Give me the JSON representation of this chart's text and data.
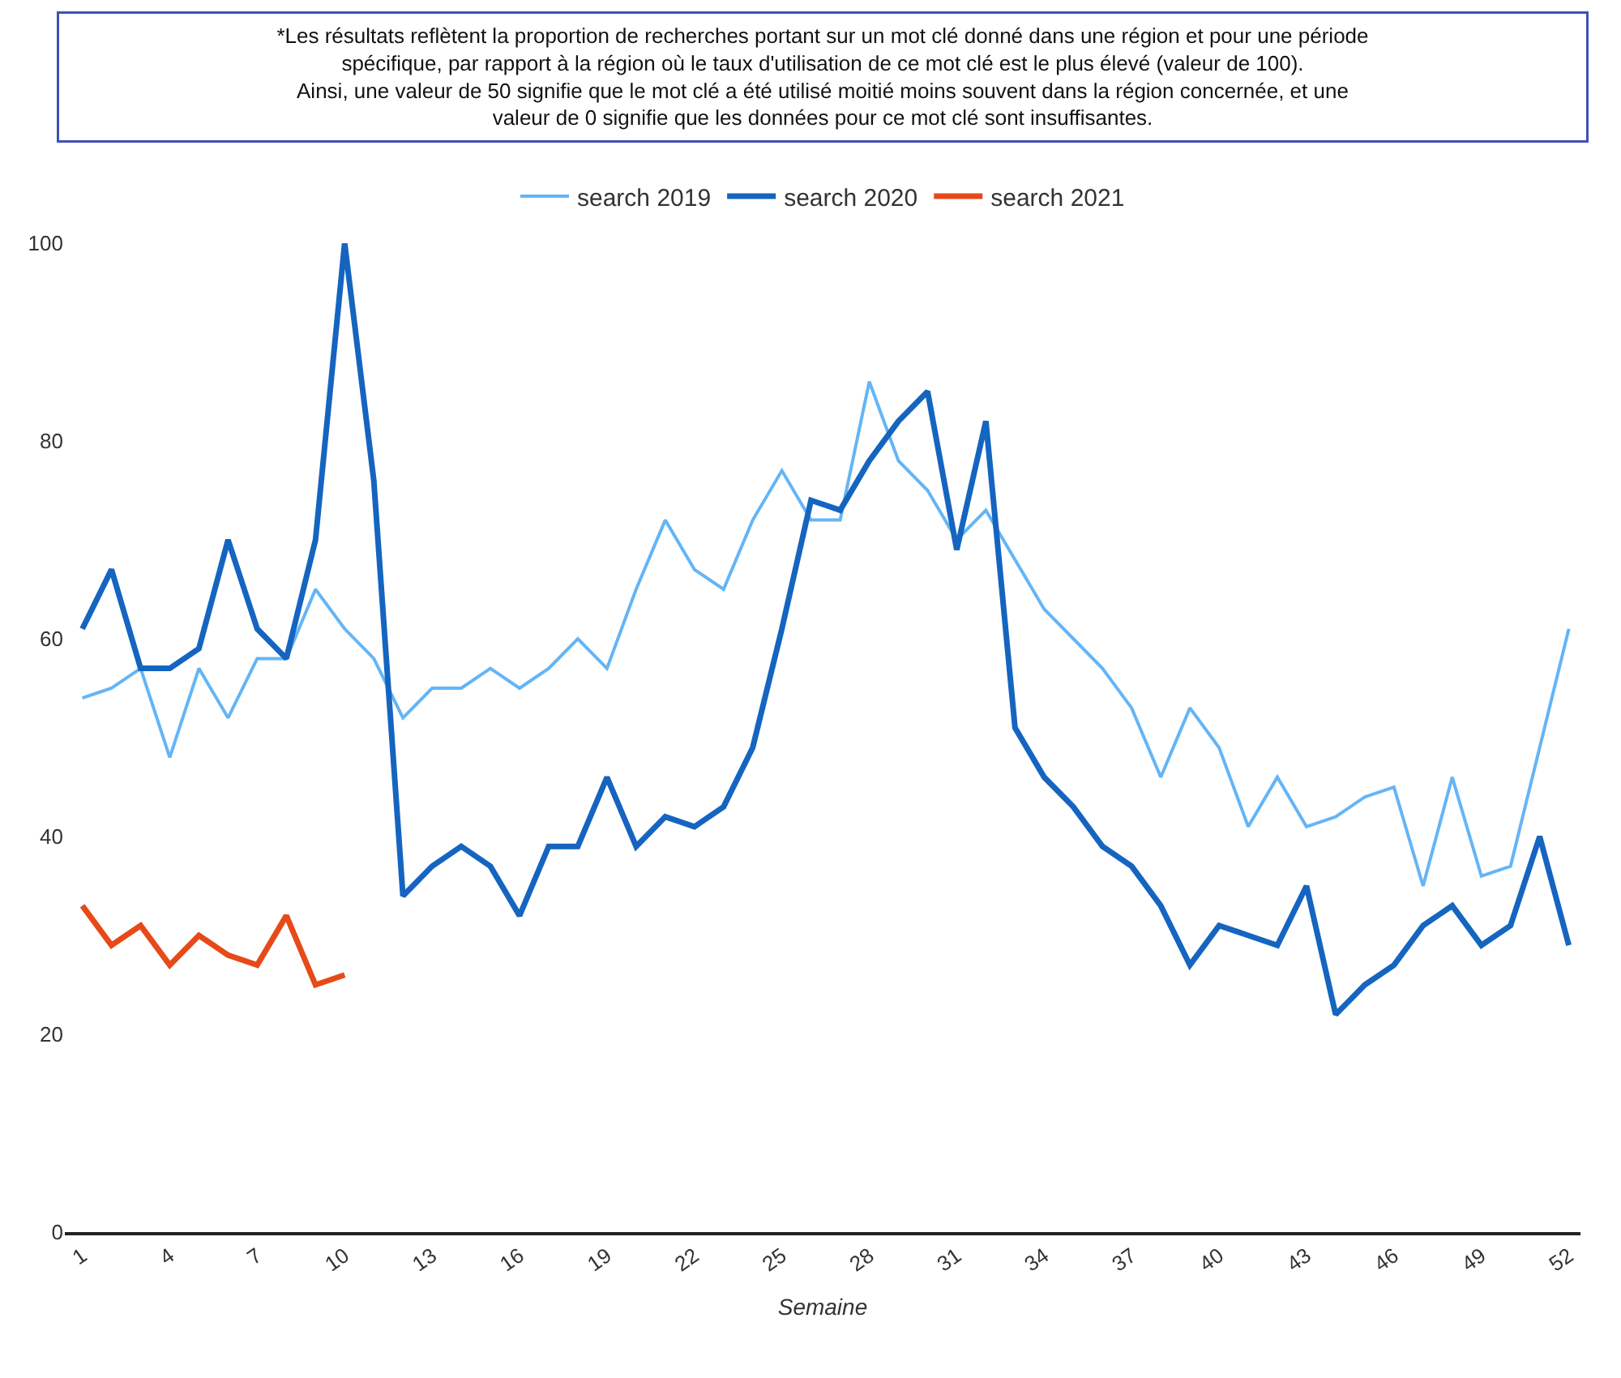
{
  "chart_data": {
    "type": "line",
    "annotations": [
      "*Les résultats reflètent la proportion de recherches portant sur un mot clé donné dans une région et pour une période spécifique, par rapport à la région où le taux d'utilisation de ce mot clé est le plus élevé (valeur de 100).\nAinsi, une valeur de 50 signifie que le mot clé a été utilisé moitié moins souvent dans la région concernée, et une valeur de 0 signifie que les données pour ce mot clé sont insuffisantes."
    ],
    "xlabel": "Semaine",
    "x": [
      1,
      2,
      3,
      4,
      5,
      6,
      7,
      8,
      9,
      10,
      11,
      12,
      13,
      14,
      15,
      16,
      17,
      18,
      19,
      20,
      21,
      22,
      23,
      24,
      25,
      26,
      27,
      28,
      29,
      30,
      31,
      32,
      33,
      34,
      35,
      36,
      37,
      38,
      39,
      40,
      41,
      42,
      43,
      44,
      45,
      46,
      47,
      48,
      49,
      50,
      51,
      52
    ],
    "series": [
      {
        "name": "search 2019",
        "color": "#64b5f6",
        "values": [
          54,
          55,
          57,
          48,
          57,
          52,
          58,
          58,
          65,
          61,
          58,
          52,
          55,
          55,
          57,
          55,
          57,
          60,
          57,
          65,
          72,
          67,
          65,
          72,
          77,
          72,
          72,
          86,
          78,
          75,
          70,
          73,
          68,
          63,
          60,
          57,
          53,
          46,
          53,
          49,
          41,
          46,
          41,
          42,
          44,
          45,
          35,
          46,
          36,
          37,
          49,
          61
        ]
      },
      {
        "name": "search 2020",
        "color": "#1565c0",
        "values": [
          61,
          67,
          57,
          57,
          59,
          70,
          61,
          58,
          70,
          100,
          76,
          34,
          37,
          39,
          37,
          32,
          39,
          39,
          46,
          39,
          42,
          41,
          43,
          49,
          61,
          74,
          73,
          78,
          82,
          85,
          69,
          82,
          51,
          46,
          43,
          39,
          37,
          33,
          27,
          31,
          30,
          29,
          35,
          22,
          25,
          27,
          31,
          33,
          29,
          31,
          40,
          29
        ]
      },
      {
        "name": "search 2021",
        "color": "#e64a19",
        "x": [
          1,
          2,
          3,
          4,
          5,
          6,
          7,
          8,
          9,
          10
        ],
        "values": [
          33,
          29,
          31,
          27,
          30,
          28,
          27,
          32,
          25,
          26
        ]
      }
    ],
    "xlim": [
      0.4,
      52.4
    ],
    "xticks": [
      1,
      4,
      7,
      10,
      13,
      16,
      19,
      22,
      25,
      28,
      31,
      34,
      37,
      40,
      43,
      46,
      49,
      52
    ],
    "ylim": [
      0,
      100
    ],
    "yticks": [
      0,
      20,
      40,
      60,
      80,
      100
    ],
    "legend": "top",
    "marker": "none",
    "line_style": "solid"
  }
}
